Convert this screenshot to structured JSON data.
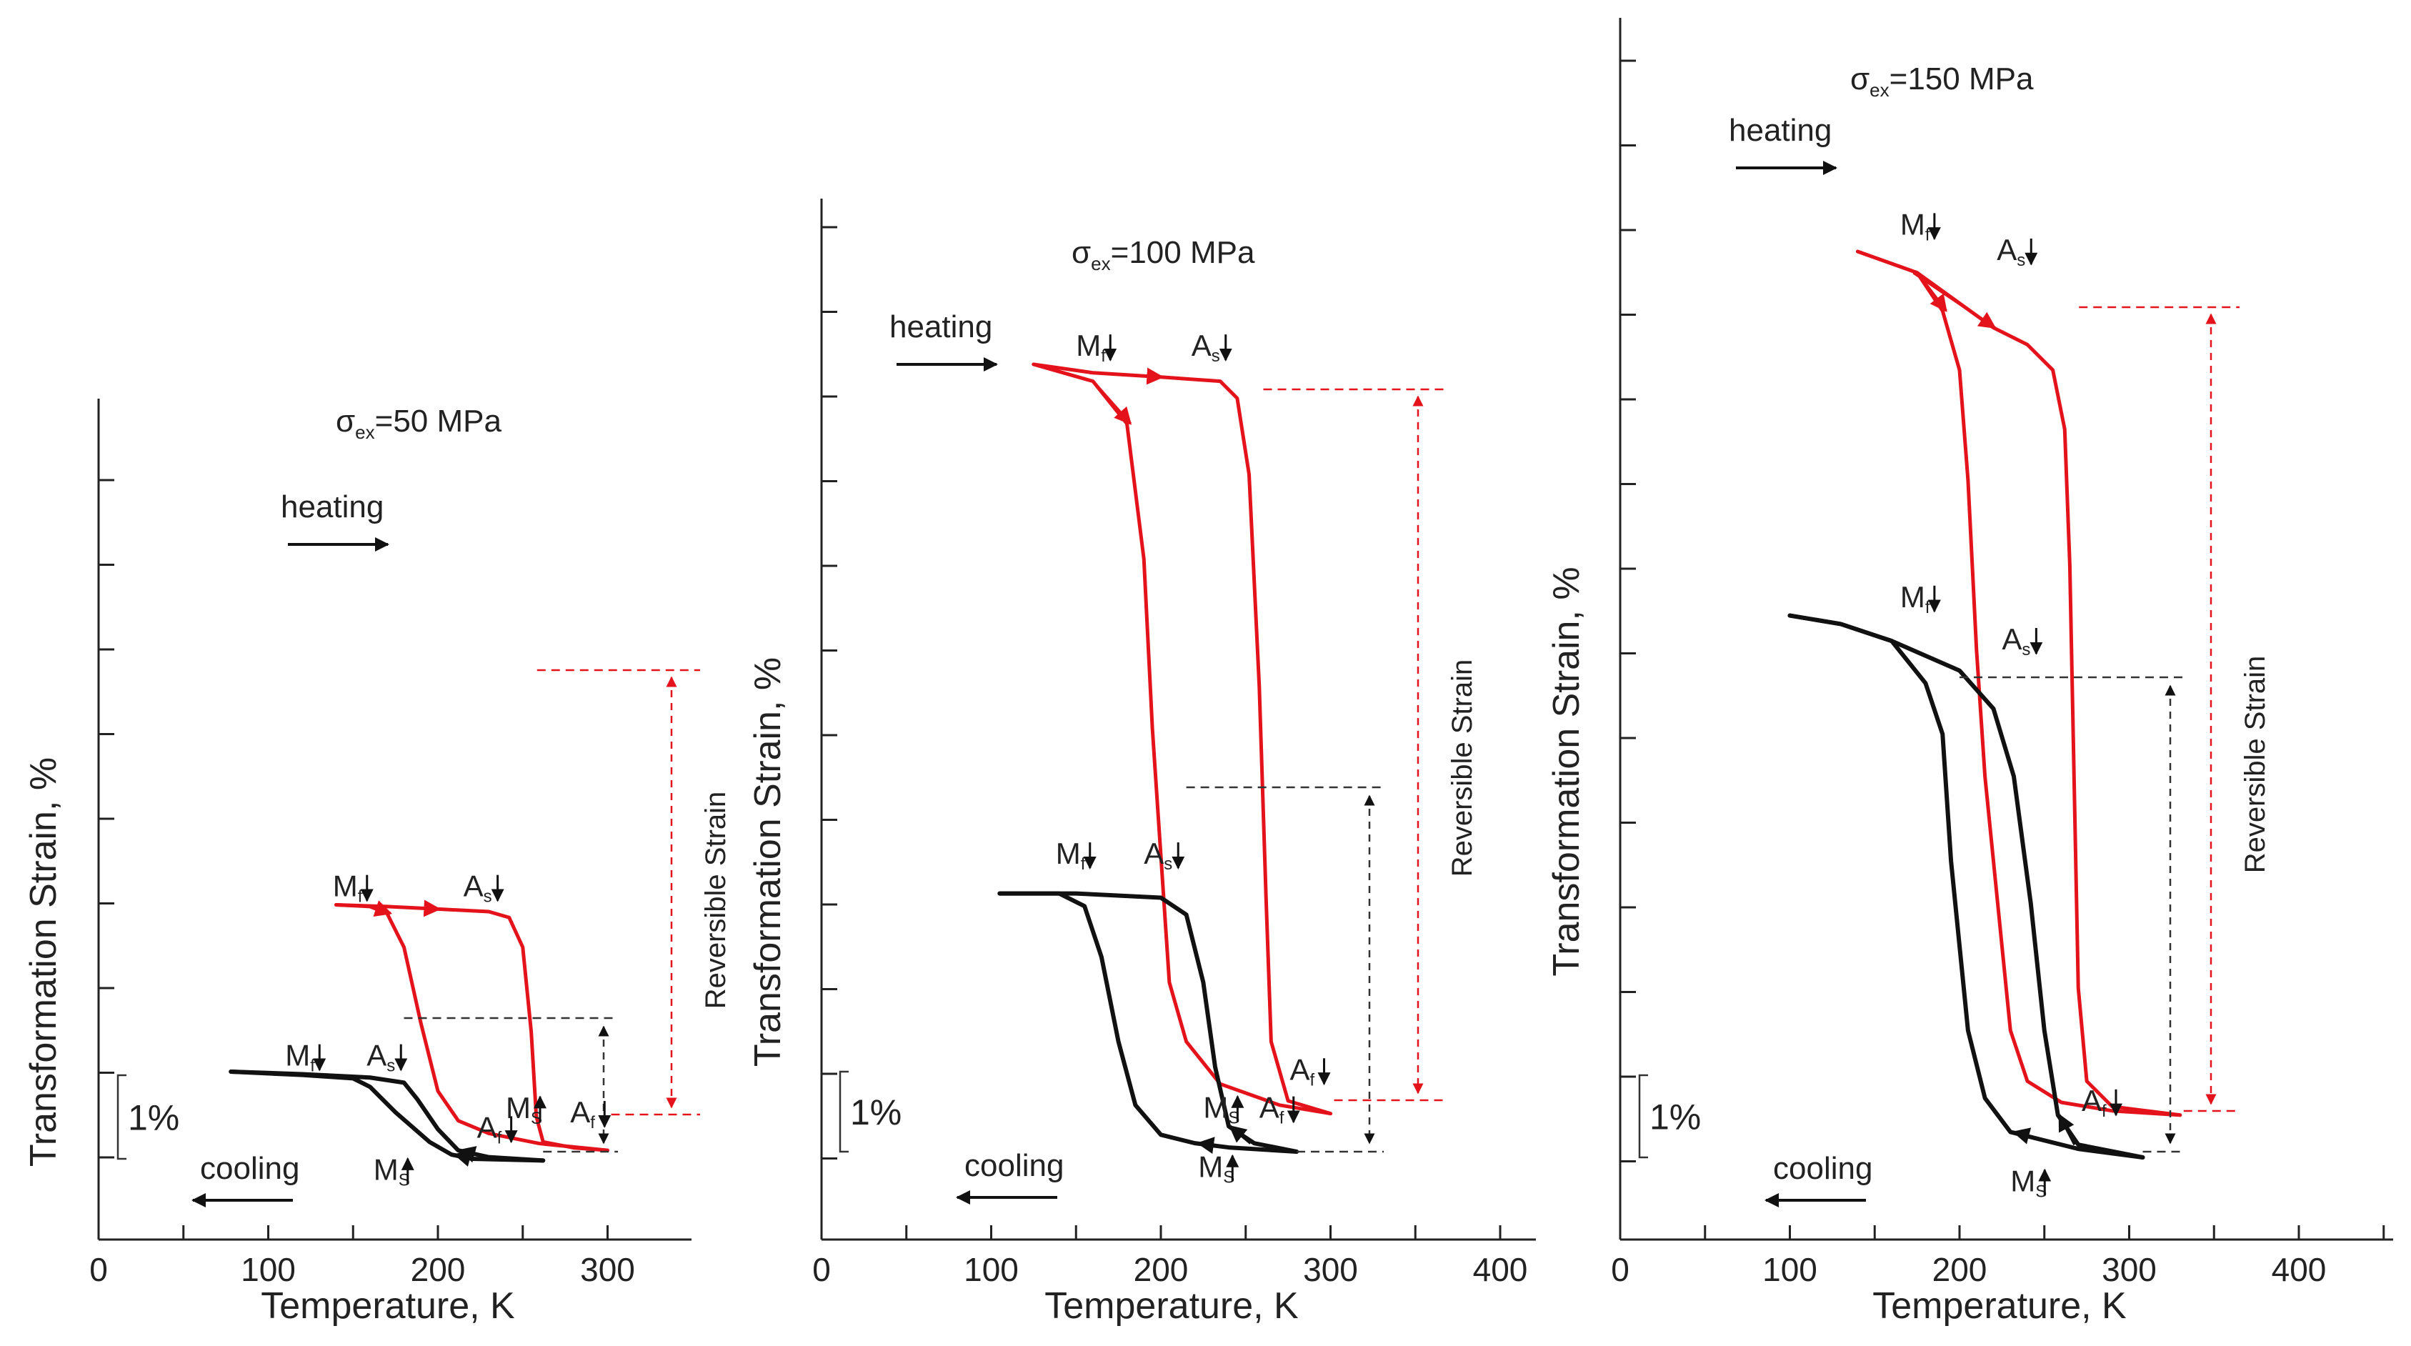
{
  "figure": {
    "text": {
      "heating": "heating",
      "cooling": "cooling",
      "reversible": "Reversible Strain",
      "scale_bar": "1%",
      "xlabel": "Temperature, K",
      "ylabel": "Transformation Strain, %",
      "sigma": "σ",
      "sigma_sub": "ex"
    },
    "marker_labels": {
      "Mf": {
        "main": "M",
        "sub": "f"
      },
      "As": {
        "main": "A",
        "sub": "s"
      },
      "Ms": {
        "main": "M",
        "sub": "S"
      },
      "Af": {
        "main": "A",
        "sub": "f"
      }
    },
    "colors": {
      "heating_curve": "#e4131b",
      "cooling_curve": "#111111",
      "axis": "#222222",
      "guide": "#333333"
    }
  },
  "chart_data": [
    {
      "type": "line",
      "title_value": "=50 MPa",
      "xlim": [
        0,
        360
      ],
      "xticks": [
        0,
        100,
        200,
        300
      ],
      "yticks": 10,
      "xlabel": "Temperature, K",
      "ylabel": "Transformation Strain, %",
      "series": [
        {
          "curve": "upper",
          "color": "#e4131b",
          "cooling": [
            [
              140,
              3.0
            ],
            [
              160,
              2.98
            ],
            [
              170,
              2.9
            ],
            [
              180,
              2.5
            ],
            [
              190,
              1.6
            ],
            [
              200,
              0.8
            ],
            [
              212,
              0.45
            ],
            [
              230,
              0.3
            ],
            [
              260,
              0.18
            ],
            [
              300,
              0.1
            ]
          ],
          "heating": [
            [
              300,
              0.1
            ],
            [
              280,
              0.13
            ],
            [
              262,
              0.2
            ],
            [
              258,
              0.5
            ],
            [
              255,
              1.5
            ],
            [
              250,
              2.5
            ],
            [
              242,
              2.85
            ],
            [
              230,
              2.92
            ],
            [
              200,
              2.95
            ],
            [
              170,
              2.98
            ],
            [
              140,
              3.0
            ]
          ]
        },
        {
          "curve": "lower",
          "color": "#111111",
          "cooling": [
            [
              262,
              -0.02
            ],
            [
              220,
              0.0
            ],
            [
              208,
              0.05
            ],
            [
              195,
              0.2
            ],
            [
              175,
              0.55
            ],
            [
              160,
              0.85
            ],
            [
              150,
              0.95
            ],
            [
              120,
              0.99
            ],
            [
              78,
              1.03
            ]
          ],
          "heating": [
            [
              78,
              1.03
            ],
            [
              120,
              1.0
            ],
            [
              160,
              0.96
            ],
            [
              180,
              0.9
            ],
            [
              188,
              0.7
            ],
            [
              200,
              0.35
            ],
            [
              212,
              0.1
            ],
            [
              230,
              0.02
            ],
            [
              262,
              -0.02
            ]
          ]
        }
      ],
      "markers": [
        {
          "label": "Mf",
          "x": 138,
          "y": 3.1
        },
        {
          "label": "As",
          "x": 215,
          "y": 3.1
        },
        {
          "label": "Ms",
          "x": 240,
          "y": 0.48
        },
        {
          "label": "Af",
          "x": 278,
          "y": 0.43
        },
        {
          "label": "Af",
          "x": 223,
          "y": 0.25
        },
        {
          "label": "Mf",
          "x": 110,
          "y": 1.1
        },
        {
          "label": "As",
          "x": 158,
          "y": 1.1
        },
        {
          "label": "Ms",
          "x": 162,
          "y": -0.25
        }
      ]
    },
    {
      "type": "line",
      "title_value": "=100 MPa",
      "xlim": [
        0,
        420
      ],
      "xticks": [
        0,
        100,
        200,
        300,
        400
      ],
      "yticks": 12,
      "xlabel": "Temperature, K",
      "ylabel": "Transformation Strain, %",
      "series": [
        {
          "curve": "upper",
          "color": "#e4131b",
          "cooling": [
            [
              125,
              9.3
            ],
            [
              160,
              9.1
            ],
            [
              180,
              8.6
            ],
            [
              190,
              7.0
            ],
            [
              195,
              5.0
            ],
            [
              200,
              3.5
            ],
            [
              205,
              2.0
            ],
            [
              215,
              1.3
            ],
            [
              235,
              0.8
            ],
            [
              270,
              0.55
            ],
            [
              300,
              0.45
            ]
          ],
          "heating": [
            [
              300,
              0.45
            ],
            [
              275,
              0.6
            ],
            [
              265,
              1.3
            ],
            [
              262,
              3.0
            ],
            [
              258,
              5.5
            ],
            [
              252,
              8.0
            ],
            [
              245,
              8.9
            ],
            [
              235,
              9.1
            ],
            [
              200,
              9.15
            ],
            [
              160,
              9.2
            ],
            [
              125,
              9.3
            ]
          ]
        },
        {
          "curve": "lower",
          "color": "#111111",
          "cooling": [
            [
              280,
              0.0
            ],
            [
              240,
              0.05
            ],
            [
              220,
              0.1
            ],
            [
              200,
              0.2
            ],
            [
              185,
              0.55
            ],
            [
              175,
              1.3
            ],
            [
              165,
              2.3
            ],
            [
              155,
              2.9
            ],
            [
              140,
              3.05
            ],
            [
              105,
              3.05
            ]
          ],
          "heating": [
            [
              105,
              3.05
            ],
            [
              150,
              3.05
            ],
            [
              200,
              3.0
            ],
            [
              215,
              2.8
            ],
            [
              225,
              2.0
            ],
            [
              232,
              1.0
            ],
            [
              240,
              0.3
            ],
            [
              255,
              0.1
            ],
            [
              280,
              0.0
            ]
          ]
        }
      ],
      "markers": [
        {
          "label": "Mf",
          "x": 150,
          "y": 9.4
        },
        {
          "label": "As",
          "x": 218,
          "y": 9.4
        },
        {
          "label": "Af",
          "x": 276,
          "y": 0.85
        },
        {
          "label": "Mf",
          "x": 138,
          "y": 3.4
        },
        {
          "label": "As",
          "x": 190,
          "y": 3.4
        },
        {
          "label": "Ms",
          "x": 225,
          "y": 0.4
        },
        {
          "label": "Af",
          "x": 258,
          "y": 0.4
        },
        {
          "label": "Ms",
          "x": 222,
          "y": -0.3
        }
      ]
    },
    {
      "type": "line",
      "title_value": "=150 MPa",
      "xlim": [
        0,
        450
      ],
      "xticks": [
        0,
        100,
        200,
        300,
        400
      ],
      "yticks": 14,
      "xlabel": "Temperature, K",
      "ylabel": "Transformation Strain, %",
      "series": [
        {
          "curve": "upper",
          "color": "#e4131b",
          "cooling": [
            [
              140,
              10.7
            ],
            [
              175,
              10.45
            ],
            [
              190,
              10.0
            ],
            [
              200,
              9.3
            ],
            [
              205,
              8.0
            ],
            [
              210,
              6.0
            ],
            [
              215,
              4.5
            ],
            [
              220,
              3.5
            ],
            [
              225,
              2.5
            ],
            [
              230,
              1.5
            ],
            [
              240,
              0.9
            ],
            [
              260,
              0.65
            ],
            [
              290,
              0.55
            ],
            [
              330,
              0.5
            ]
          ],
          "heating": [
            [
              330,
              0.5
            ],
            [
              290,
              0.6
            ],
            [
              275,
              0.9
            ],
            [
              270,
              2.0
            ],
            [
              268,
              4.0
            ],
            [
              265,
              7.0
            ],
            [
              262,
              8.6
            ],
            [
              255,
              9.3
            ],
            [
              240,
              9.6
            ],
            [
              220,
              9.8
            ],
            [
              175,
              10.45
            ],
            [
              140,
              10.7
            ]
          ]
        },
        {
          "curve": "lower",
          "color": "#111111",
          "cooling": [
            [
              308,
              0.0
            ],
            [
              270,
              0.1
            ],
            [
              230,
              0.3
            ],
            [
              215,
              0.7
            ],
            [
              205,
              1.5
            ],
            [
              200,
              2.5
            ],
            [
              195,
              3.5
            ],
            [
              190,
              5.0
            ],
            [
              180,
              5.6
            ],
            [
              160,
              6.1
            ],
            [
              130,
              6.3
            ],
            [
              100,
              6.4
            ]
          ],
          "heating": [
            [
              100,
              6.4
            ],
            [
              130,
              6.3
            ],
            [
              160,
              6.1
            ],
            [
              200,
              5.75
            ],
            [
              220,
              5.3
            ],
            [
              232,
              4.5
            ],
            [
              242,
              3.0
            ],
            [
              250,
              1.5
            ],
            [
              258,
              0.5
            ],
            [
              270,
              0.15
            ],
            [
              308,
              0.0
            ]
          ]
        }
      ],
      "markers": [
        {
          "label": "Mf",
          "x": 165,
          "y": 10.9
        },
        {
          "label": "As",
          "x": 222,
          "y": 10.6
        },
        {
          "label": "Mf",
          "x": 165,
          "y": 6.5
        },
        {
          "label": "As",
          "x": 225,
          "y": 6.0
        },
        {
          "label": "Af",
          "x": 272,
          "y": 0.55
        },
        {
          "label": "Ms",
          "x": 230,
          "y": -0.4
        }
      ]
    }
  ]
}
